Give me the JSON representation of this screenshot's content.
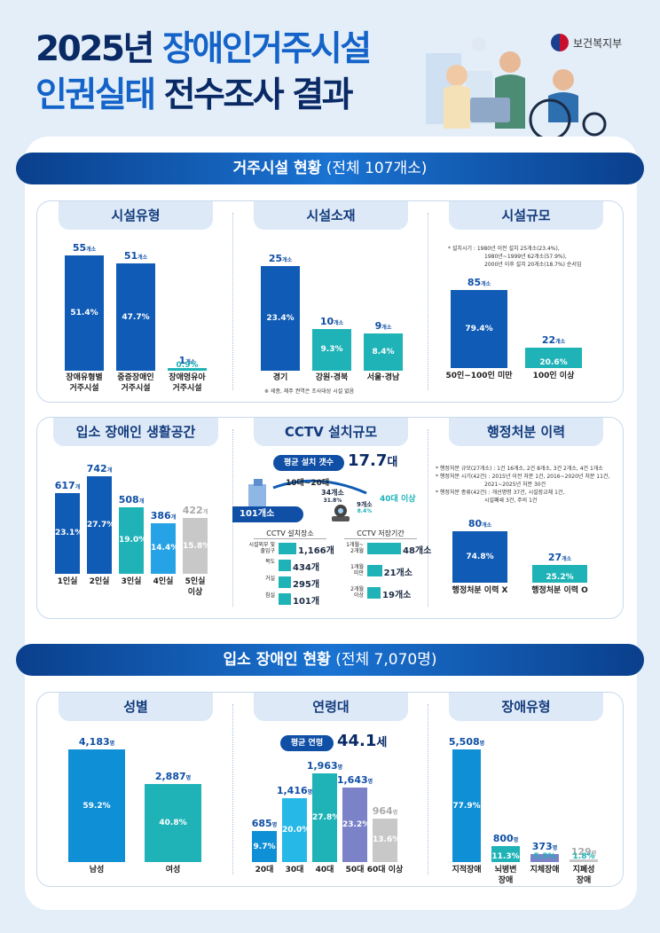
{
  "header": {
    "title_line1_a": "2025년 ",
    "title_line1_b": "장애인거주시설",
    "title_line2_a": "인권실태 ",
    "title_line2_b": "전수조사 결과",
    "ministry": "보건복지부"
  },
  "section1": {
    "title": "거주시설 현황",
    "subtitle": " (전체 107개소)"
  },
  "section2": {
    "title": "입소 장애인 현황",
    "subtitle": " (전체 7,070명)"
  },
  "panels": {
    "type": "시설유형",
    "location": "시설소재",
    "scale": "시설규모",
    "space": "입소 장애인 생활공간",
    "cctv": "CCTV 설치규모",
    "penalty": "행정처분 이력",
    "gender": "성별",
    "age": "연령대",
    "disability": "장애유형"
  },
  "notes": {
    "location": "※ 세종, 제주 권역은 조사대상 시설 없음",
    "scale": [
      "* 설치시기 : 1980년 이전 설치   25개소(23.4%),",
      "1980년~1999년 62개소(57.9%),",
      "2000년 이후 설치   20개소(18.7%) 순서임"
    ],
    "penalty": [
      "* 행정처분 규모(27개소) : 1건 16개소, 2건 8개소, 3건 2개소, 4건 1개소",
      "* 행정처분 시기(42건) : 2015년 이전 처분 1건, 2016~2020년 처분 11건,",
      "2021~2025년 처분 30건",
      "* 행정처분 종류(42건) : 개선명령 37건, 시설장교체 1건,",
      "시설폐쇄 3건, 주의 1건"
    ]
  },
  "cctv": {
    "avg_label": "평균 설치 갯수",
    "avg_value": "17.7",
    "avg_unit": "대",
    "range_label": "10대~20대",
    "range_value": "101개소",
    "mid_label": "34개소",
    "mid_pct": "31.8%",
    "high_label": "40대 이상",
    "high_value": "9개소",
    "high_pct": "8.4%",
    "place_title": "CCTV 설치장소",
    "period_title": "CCTV 저장기간",
    "places": [
      {
        "label": "시설외부 및\n출입구",
        "value": "1,166개"
      },
      {
        "label": "복도",
        "value": "434개"
      },
      {
        "label": "거실",
        "value": "295개"
      },
      {
        "label": "침실",
        "value": "101개"
      }
    ],
    "periods": [
      {
        "label": "1개월~\n2개월",
        "value": "48개소"
      },
      {
        "label": "1개월\n미만",
        "value": "21개소"
      },
      {
        "label": "2개월\n이상",
        "value": "19개소"
      }
    ]
  },
  "age": {
    "avg_label": "평균 연령",
    "avg_value": "44.1",
    "avg_unit": "세"
  },
  "chart_data": [
    {
      "type": "bar",
      "title": "시설유형",
      "categories": [
        "장애유형별\n거주시설",
        "중증장애인\n거주시설",
        "장애영유아\n거주시설"
      ],
      "values": [
        55,
        51,
        1
      ],
      "value_labels": [
        "55개소",
        "51개소",
        "1개소"
      ],
      "percent_labels": [
        "51.4%",
        "47.7%",
        "0.9%"
      ],
      "colors": [
        "#0f5bb5",
        "#0f5bb5",
        "#1fb3b8"
      ]
    },
    {
      "type": "bar",
      "title": "시설소재",
      "categories": [
        "경기",
        "강원·경북",
        "서울·경남"
      ],
      "values": [
        25,
        10,
        9
      ],
      "value_labels": [
        "25개소",
        "10개소",
        "9개소"
      ],
      "percent_labels": [
        "23.4%",
        "9.3%",
        "8.4%"
      ],
      "colors": [
        "#0f5bb5",
        "#1fb3b8",
        "#1fb3b8"
      ]
    },
    {
      "type": "bar",
      "title": "시설규모",
      "categories": [
        "50인~100인 미만",
        "100인 이상"
      ],
      "values": [
        85,
        22
      ],
      "value_labels": [
        "85개소",
        "22개소"
      ],
      "percent_labels": [
        "79.4%",
        "20.6%"
      ],
      "colors": [
        "#0f5bb5",
        "#1fb3b8"
      ]
    },
    {
      "type": "bar",
      "title": "입소 장애인 생활공간",
      "categories": [
        "1인실",
        "2인실",
        "3인실",
        "4인실",
        "5인실\n이상"
      ],
      "values": [
        617,
        742,
        508,
        386,
        422
      ],
      "value_labels": [
        "617개",
        "742개",
        "508개",
        "386개",
        "422개"
      ],
      "percent_labels": [
        "23.1%",
        "27.7%",
        "19.0%",
        "14.4%",
        "15.8%"
      ],
      "colors": [
        "#0f5bb5",
        "#0f5bb5",
        "#1fb3b8",
        "#26a3e6",
        "#c8c8c8"
      ]
    },
    {
      "type": "bar",
      "title": "행정처분 이력",
      "categories": [
        "행정처분 이력 X",
        "행정처분 이력 O"
      ],
      "values": [
        80,
        27
      ],
      "value_labels": [
        "80개소",
        "27개소"
      ],
      "percent_labels": [
        "74.8%",
        "25.2%"
      ],
      "colors": [
        "#0f5bb5",
        "#1fb3b8"
      ]
    },
    {
      "type": "bar",
      "title": "성별",
      "categories": [
        "남성",
        "여성"
      ],
      "values": [
        4183,
        2887
      ],
      "value_labels": [
        "4,183명",
        "2,887명"
      ],
      "percent_labels": [
        "59.2%",
        "40.8%"
      ],
      "colors": [
        "#0f8fd6",
        "#1fb3b8"
      ]
    },
    {
      "type": "bar",
      "title": "연령대",
      "categories": [
        "20대",
        "30대",
        "40대",
        "50대",
        "60대 이상"
      ],
      "values": [
        685,
        1416,
        1963,
        1643,
        964
      ],
      "value_labels": [
        "685명",
        "1,416명",
        "1,963명",
        "1,643명",
        "964명"
      ],
      "percent_labels": [
        "9.7%",
        "20.0%",
        "27.8%",
        "23.2%",
        "13.6%"
      ],
      "colors": [
        "#0f8fd6",
        "#26b8e6",
        "#1fb3b8",
        "#7b82c8",
        "#c8c8c8"
      ]
    },
    {
      "type": "bar",
      "title": "장애유형",
      "categories": [
        "지적장애",
        "뇌병변\n장애",
        "지체장애",
        "지폐성\n장애"
      ],
      "values": [
        5508,
        800,
        373,
        129
      ],
      "value_labels": [
        "5,508명",
        "800명",
        "373명",
        "129명"
      ],
      "percent_labels": [
        "77.9%",
        "11.3%",
        "5.3%",
        "1.8%"
      ],
      "colors": [
        "#0f8fd6",
        "#1fb3b8",
        "#7b82c8",
        "#c8c8c8"
      ]
    }
  ]
}
